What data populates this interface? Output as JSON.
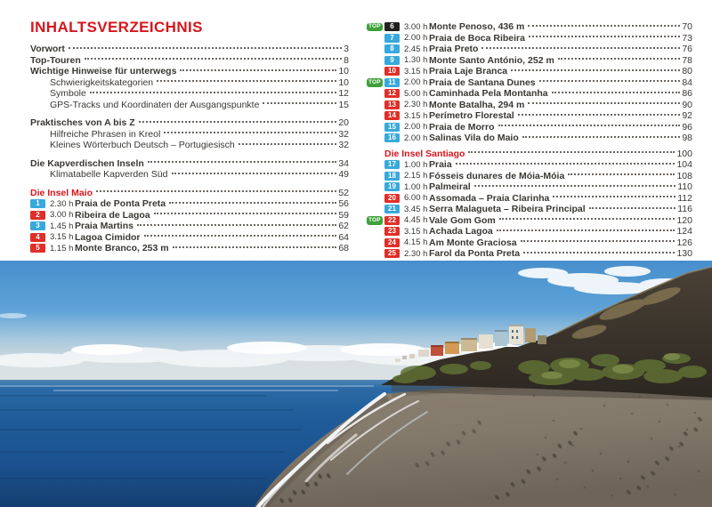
{
  "title": "INHALTSVERZEICHNIS",
  "labels": {
    "top_badge": "TOP"
  },
  "colors": {
    "heading_red": "#d6161d",
    "difficulty_blue": "#38a8dd",
    "difficulty_red": "#e02f28",
    "difficulty_black": "#221f1f",
    "top_badge_green": "#3fa13a"
  },
  "columns": {
    "left": [
      {
        "type": "entry",
        "style": "bold",
        "label": "Vorwort",
        "page": "3"
      },
      {
        "type": "entry",
        "style": "bold",
        "label": "Top-Touren",
        "page": "8"
      },
      {
        "type": "entry",
        "style": "bold",
        "label": "Wichtige Hinweise für unterwegs",
        "page": "10"
      },
      {
        "type": "entry",
        "style": "indent",
        "label": "Schwierigkeitskategorien",
        "page": "10"
      },
      {
        "type": "entry",
        "style": "indent",
        "label": "Symbole",
        "page": "12"
      },
      {
        "type": "entry",
        "style": "indent",
        "label": "GPS-Tracks und Koordinaten der Ausgangspunkte",
        "page": "15"
      },
      {
        "type": "gap"
      },
      {
        "type": "entry",
        "style": "bold",
        "label": "Praktisches von A bis Z",
        "page": "20"
      },
      {
        "type": "entry",
        "style": "indent",
        "label": "Hilfreiche Phrasen in Kreol",
        "page": "32"
      },
      {
        "type": "entry",
        "style": "indent",
        "label": "Kleines Wörterbuch Deutsch – Portugiesisch",
        "page": "32"
      },
      {
        "type": "gap"
      },
      {
        "type": "entry",
        "style": "bold",
        "label": "Die Kapverdischen Inseln",
        "page": "34"
      },
      {
        "type": "entry",
        "style": "indent",
        "label": "Klimatabelle Kapverden Süd",
        "page": "49"
      },
      {
        "type": "gap"
      },
      {
        "type": "heading",
        "label": "Die Insel Maio",
        "page": "52"
      },
      {
        "type": "tour",
        "num": "1",
        "difficulty": "blue",
        "time": "2.30 h",
        "label": "Praia de Ponta Preta",
        "page": "56"
      },
      {
        "type": "tour",
        "num": "2",
        "difficulty": "red",
        "time": "3.00 h",
        "label": "Ribeira de Lagoa",
        "page": "59"
      },
      {
        "type": "tour",
        "num": "3",
        "difficulty": "blue",
        "time": "1.45 h",
        "label": "Praia Martins",
        "page": "62"
      },
      {
        "type": "tour",
        "num": "4",
        "difficulty": "red",
        "time": "3.15 h",
        "label": "Lagoa Cimidor",
        "page": "64"
      },
      {
        "type": "tour",
        "num": "5",
        "difficulty": "red",
        "time": "1.15 h",
        "label": "Monte Branco, 253 m",
        "page": "68"
      }
    ],
    "right": [
      {
        "type": "tour",
        "top": true,
        "num": "6",
        "difficulty": "black",
        "time": "3.00 h",
        "label": "Monte Penoso, 436 m",
        "page": "70"
      },
      {
        "type": "tour",
        "num": "7",
        "difficulty": "blue",
        "time": "2.00 h",
        "label": "Praia de Boca Ribeira",
        "page": "73"
      },
      {
        "type": "tour",
        "num": "8",
        "difficulty": "blue",
        "time": "2.45 h",
        "label": "Praia Preto",
        "page": "76"
      },
      {
        "type": "tour",
        "num": "9",
        "difficulty": "blue",
        "time": "1.30 h",
        "label": "Monte Santo António, 252 m",
        "page": "78"
      },
      {
        "type": "tour",
        "num": "10",
        "difficulty": "red",
        "time": "3.15 h",
        "label": "Praia Laje Branca",
        "page": "80"
      },
      {
        "type": "tour",
        "top": true,
        "num": "11",
        "difficulty": "blue",
        "time": "2.00 h",
        "label": "Praia de Santana Dunes",
        "page": "84"
      },
      {
        "type": "tour",
        "num": "12",
        "difficulty": "red",
        "time": "5.00 h",
        "label": "Caminhada Pela Montanha",
        "page": "86"
      },
      {
        "type": "tour",
        "num": "13",
        "difficulty": "red",
        "time": "2.30 h",
        "label": "Monte Batalha, 294 m",
        "page": "90"
      },
      {
        "type": "tour",
        "num": "14",
        "difficulty": "red",
        "time": "3.15 h",
        "label": "Perímetro Florestal",
        "page": "92"
      },
      {
        "type": "tour",
        "num": "15",
        "difficulty": "blue",
        "time": "2.00 h",
        "label": "Praia de Morro",
        "page": "96"
      },
      {
        "type": "tour",
        "num": "16",
        "difficulty": "blue",
        "time": "2.00 h",
        "label": "Salinas Vila do Maio",
        "page": "98"
      },
      {
        "type": "gap"
      },
      {
        "type": "heading",
        "label": "Die Insel Santiago",
        "page": "100"
      },
      {
        "type": "tour",
        "num": "17",
        "difficulty": "blue",
        "time": "1.00 h",
        "label": "Praia",
        "page": "104"
      },
      {
        "type": "tour",
        "num": "18",
        "difficulty": "blue",
        "time": "2.15 h",
        "label": "Fósseis dunares de Móia-Móia",
        "page": "108"
      },
      {
        "type": "tour",
        "num": "19",
        "difficulty": "blue",
        "time": "1.00 h",
        "label": "Palmeiral",
        "page": "110"
      },
      {
        "type": "tour",
        "num": "20",
        "difficulty": "red",
        "time": "6.00 h",
        "label": "Assomada – Praia Clarinha",
        "page": "112"
      },
      {
        "type": "tour",
        "num": "21",
        "difficulty": "blue",
        "time": "3.45 h",
        "label": "Serra Malagueta – Ribeira Principal",
        "page": "116"
      },
      {
        "type": "tour",
        "top": true,
        "num": "22",
        "difficulty": "red",
        "time": "4.45 h",
        "label": "Vale Gom Gom",
        "page": "120"
      },
      {
        "type": "tour",
        "num": "23",
        "difficulty": "red",
        "time": "3.15 h",
        "label": "Achada Lagoa",
        "page": "124"
      },
      {
        "type": "tour",
        "num": "24",
        "difficulty": "red",
        "time": "4.15 h",
        "label": "Am Monte Graciosa",
        "page": "126"
      },
      {
        "type": "tour",
        "num": "25",
        "difficulty": "red",
        "time": "2.30 h",
        "label": "Farol da Ponta Preta",
        "page": "130"
      }
    ]
  }
}
